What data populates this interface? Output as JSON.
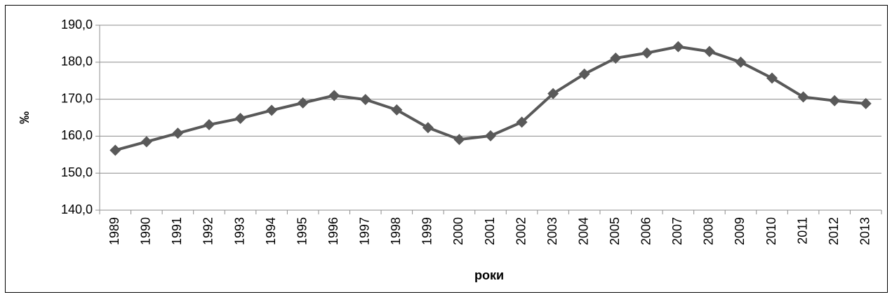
{
  "chart_data": {
    "type": "line",
    "y_label": "‰",
    "x_label": "роки",
    "categories": [
      "1989",
      "1990",
      "1991",
      "1992",
      "1993",
      "1994",
      "1995",
      "1996",
      "1997",
      "1998",
      "1999",
      "2000",
      "2001",
      "2002",
      "2003",
      "2004",
      "2005",
      "2006",
      "2007",
      "2008",
      "2009",
      "2010",
      "2011",
      "2012",
      "2013"
    ],
    "series": [
      {
        "color": "#595959",
        "values": [
          156.2,
          158.5,
          160.8,
          163.1,
          164.8,
          167.0,
          169.0,
          171.0,
          169.9,
          167.1,
          162.3,
          159.1,
          160.1,
          163.8,
          171.5,
          176.8,
          181.1,
          182.5,
          184.2,
          182.9,
          180.0,
          175.7,
          170.6,
          169.6,
          168.8
        ]
      }
    ],
    "ylim": [
      140,
      190
    ],
    "yticks": [
      {
        "value": 140,
        "label": "140,0"
      },
      {
        "value": 150,
        "label": "150,0"
      },
      {
        "value": 160,
        "label": "160,0"
      },
      {
        "value": 170,
        "label": "170,0"
      },
      {
        "value": 180,
        "label": "180,0"
      },
      {
        "value": 190,
        "label": "190,0"
      }
    ],
    "grid": true
  }
}
